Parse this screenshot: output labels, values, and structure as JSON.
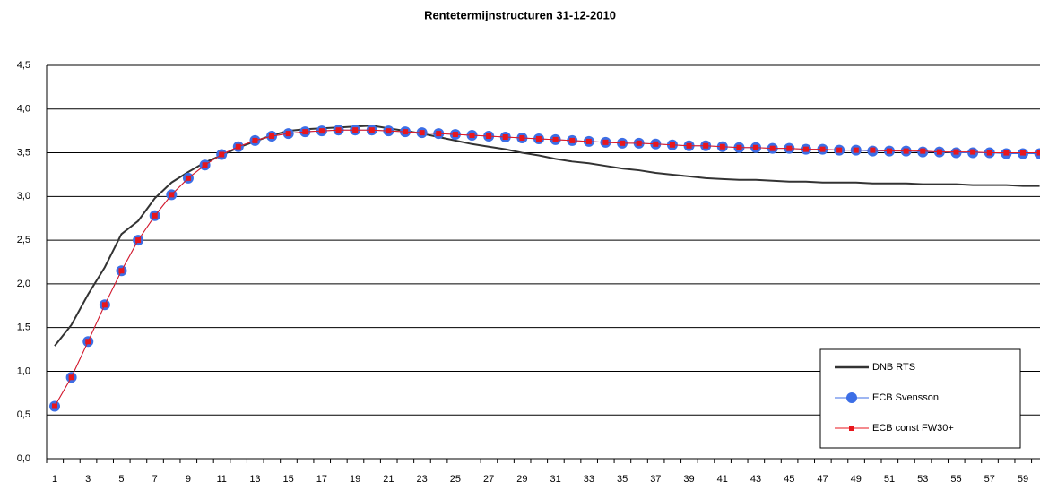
{
  "chart_data": {
    "type": "line",
    "title": "Rentetermijnstructuren 31-12-2010",
    "categories": [
      1,
      null,
      3,
      null,
      5,
      null,
      7,
      null,
      9,
      null,
      11,
      null,
      13,
      null,
      15,
      null,
      17,
      null,
      19,
      null,
      21,
      null,
      23,
      null,
      25,
      null,
      27,
      null,
      29,
      null,
      31,
      null,
      33,
      null,
      35,
      null,
      37,
      null,
      39,
      null,
      41,
      null,
      43,
      null,
      45,
      null,
      47,
      null,
      49,
      null,
      51,
      null,
      53,
      null,
      55,
      null,
      57,
      null,
      59,
      null
    ],
    "ylim": [
      0,
      4.5
    ],
    "yticks": [
      {
        "value": 0,
        "label": "0,0"
      },
      {
        "value": 0.5,
        "label": "0,5"
      },
      {
        "value": 1,
        "label": "1,0"
      },
      {
        "value": 1.5,
        "label": "1,5"
      },
      {
        "value": 2,
        "label": "2,0"
      },
      {
        "value": 2.5,
        "label": "2,5"
      },
      {
        "value": 3,
        "label": "3,0"
      },
      {
        "value": 3.5,
        "label": "3,5"
      },
      {
        "value": 4,
        "label": "4,0"
      },
      {
        "value": 4.5,
        "label": "4,5"
      }
    ],
    "grid": true,
    "legend": "bottom-right",
    "series": [
      {
        "name": "DNB RTS",
        "color": "#333333",
        "marker": "none",
        "values": [
          1.29,
          1.53,
          1.88,
          2.19,
          2.57,
          2.72,
          2.98,
          3.16,
          3.28,
          3.39,
          3.47,
          3.56,
          3.63,
          3.7,
          3.75,
          3.77,
          3.78,
          3.79,
          3.8,
          3.81,
          3.78,
          3.75,
          3.72,
          3.68,
          3.64,
          3.6,
          3.57,
          3.54,
          3.5,
          3.47,
          3.43,
          3.4,
          3.38,
          3.35,
          3.32,
          3.3,
          3.27,
          3.25,
          3.23,
          3.21,
          3.2,
          3.19,
          3.19,
          3.18,
          3.17,
          3.17,
          3.16,
          3.16,
          3.16,
          3.15,
          3.15,
          3.15,
          3.14,
          3.14,
          3.14,
          3.13,
          3.13,
          3.13,
          3.12,
          3.12
        ]
      },
      {
        "name": "ECB Svensson",
        "color": "#3c6ee6",
        "marker": "circle",
        "values": [
          0.6,
          0.93,
          1.34,
          1.76,
          2.15,
          2.5,
          2.78,
          3.02,
          3.21,
          3.36,
          3.48,
          3.57,
          3.64,
          3.69,
          3.72,
          3.74,
          3.75,
          3.76,
          3.76,
          3.76,
          3.75,
          3.74,
          3.73,
          3.72,
          3.71,
          3.7,
          3.69,
          3.68,
          3.67,
          3.66,
          3.65,
          3.64,
          3.63,
          3.62,
          3.61,
          3.61,
          3.6,
          3.59,
          3.58,
          3.58,
          3.57,
          3.56,
          3.56,
          3.55,
          3.55,
          3.54,
          3.54,
          3.53,
          3.53,
          3.52,
          3.52,
          3.52,
          3.51,
          3.51,
          3.5,
          3.5,
          3.5,
          3.49,
          3.49,
          3.49
        ]
      },
      {
        "name": "ECB const FW30+",
        "color": "#e8161c",
        "marker": "square",
        "values": [
          0.6,
          0.93,
          1.34,
          1.76,
          2.15,
          2.5,
          2.78,
          3.02,
          3.21,
          3.36,
          3.48,
          3.57,
          3.64,
          3.69,
          3.72,
          3.74,
          3.75,
          3.76,
          3.76,
          3.76,
          3.75,
          3.74,
          3.73,
          3.72,
          3.71,
          3.7,
          3.69,
          3.68,
          3.67,
          3.66,
          3.65,
          3.64,
          3.63,
          3.62,
          3.61,
          3.61,
          3.6,
          3.59,
          3.58,
          3.58,
          3.57,
          3.56,
          3.56,
          3.55,
          3.55,
          3.54,
          3.54,
          3.53,
          3.53,
          3.53,
          3.52,
          3.52,
          3.52,
          3.51,
          3.51,
          3.51,
          3.5,
          3.5,
          3.5,
          3.5
        ]
      }
    ]
  }
}
